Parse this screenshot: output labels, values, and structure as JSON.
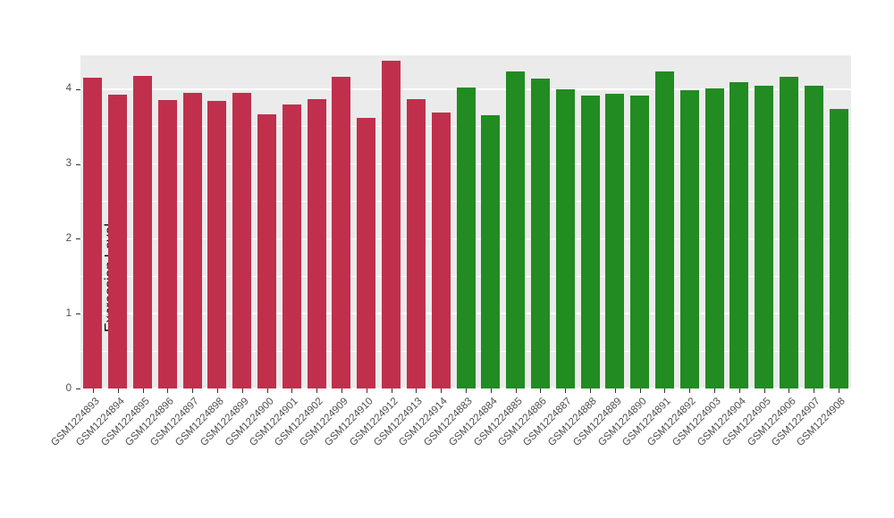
{
  "chart_data": {
    "type": "bar",
    "title": "",
    "xlabel": "",
    "ylabel": "Expression Level",
    "ylim": [
      0,
      4.45
    ],
    "yticks": [
      0,
      1,
      2,
      3,
      4
    ],
    "minor_gridlines": [
      0.5,
      1.5,
      2.5,
      3.5
    ],
    "grid": "on",
    "legend_position": "none",
    "panel_background": "#EBEBEB",
    "gridline_color": "#ffffff",
    "group_colors": {
      "red": "#C0304C",
      "green": "#228B22"
    },
    "categories": [
      "GSM1224893",
      "GSM1224894",
      "GSM1224895",
      "GSM1224896",
      "GSM1224897",
      "GSM1224898",
      "GSM1224899",
      "GSM1224900",
      "GSM1224901",
      "GSM1224902",
      "GSM1224909",
      "GSM1224910",
      "GSM1224912",
      "GSM1224913",
      "GSM1224914",
      "GSM1224883",
      "GSM1224884",
      "GSM1224885",
      "GSM1224886",
      "GSM1224887",
      "GSM1224888",
      "GSM1224889",
      "GSM1224890",
      "GSM1224891",
      "GSM1224892",
      "GSM1224903",
      "GSM1224904",
      "GSM1224905",
      "GSM1224906",
      "GSM1224907",
      "GSM1224908"
    ],
    "values": [
      4.15,
      3.92,
      4.18,
      3.85,
      3.95,
      3.84,
      3.95,
      3.66,
      3.79,
      3.86,
      4.16,
      3.62,
      4.38,
      3.86,
      3.69,
      4.02,
      3.65,
      4.24,
      4.14,
      4.0,
      3.91,
      3.94,
      3.91,
      4.23,
      3.99,
      4.01,
      4.09,
      4.05,
      4.16,
      4.04,
      3.74
    ],
    "bar_groups": [
      "red",
      "red",
      "red",
      "red",
      "red",
      "red",
      "red",
      "red",
      "red",
      "red",
      "red",
      "red",
      "red",
      "red",
      "red",
      "green",
      "green",
      "green",
      "green",
      "green",
      "green",
      "green",
      "green",
      "green",
      "green",
      "green",
      "green",
      "green",
      "green",
      "green",
      "green"
    ]
  }
}
